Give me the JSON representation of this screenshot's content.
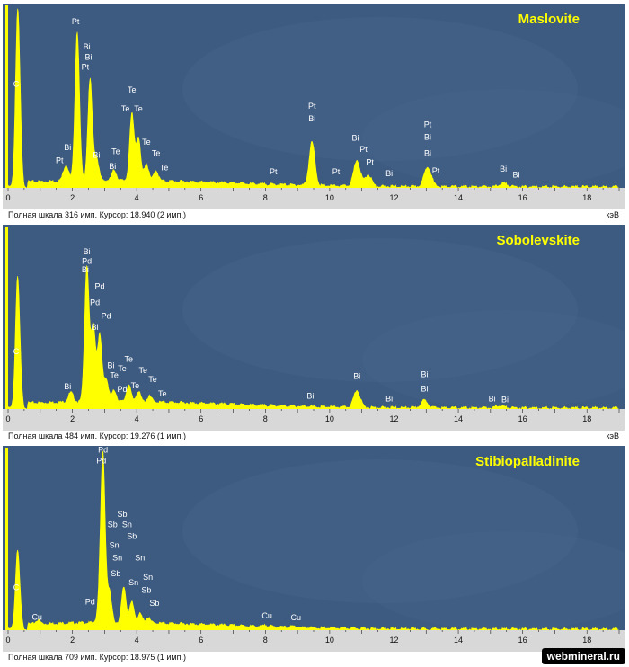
{
  "watermark": "webmineral.ru",
  "unit_label": "кэВ",
  "colors": {
    "spectrum": "#ffff00",
    "background": "#3d5a80",
    "text": "#ffffff",
    "title": "#ffff00"
  },
  "chart_data": [
    {
      "type": "area",
      "title": "Maslovite",
      "status": "Полная шкала 316 имп. Курсор: 18.940  (2 имп.)",
      "xlim": [
        0,
        19
      ],
      "ylim": [
        0,
        316
      ],
      "xticks": [
        0,
        2,
        4,
        6,
        8,
        10,
        12,
        14,
        16,
        18
      ],
      "peaks": [
        {
          "x": 0.28,
          "y": 230,
          "w": 0.06
        },
        {
          "x": 0.35,
          "y": 130,
          "w": 0.06
        },
        {
          "x": 1.8,
          "y": 28,
          "w": 0.08
        },
        {
          "x": 2.15,
          "y": 260,
          "w": 0.07
        },
        {
          "x": 2.55,
          "y": 175,
          "w": 0.07
        },
        {
          "x": 2.75,
          "y": 40,
          "w": 0.07
        },
        {
          "x": 3.3,
          "y": 18,
          "w": 0.07
        },
        {
          "x": 3.85,
          "y": 115,
          "w": 0.07
        },
        {
          "x": 4.05,
          "y": 75,
          "w": 0.07
        },
        {
          "x": 4.3,
          "y": 30,
          "w": 0.07
        },
        {
          "x": 4.6,
          "y": 18,
          "w": 0.07
        },
        {
          "x": 9.45,
          "y": 75,
          "w": 0.09
        },
        {
          "x": 10.85,
          "y": 45,
          "w": 0.1
        },
        {
          "x": 11.2,
          "y": 20,
          "w": 0.1
        },
        {
          "x": 13.05,
          "y": 35,
          "w": 0.11
        },
        {
          "x": 15.4,
          "y": 6,
          "w": 0.12
        }
      ],
      "labels": [
        {
          "text": "C",
          "x": 0.25,
          "y": 175
        },
        {
          "text": "Pt",
          "x": 2.1,
          "y": 283
        },
        {
          "text": "Bi",
          "x": 2.45,
          "y": 240
        },
        {
          "text": "Bi",
          "x": 2.5,
          "y": 222
        },
        {
          "text": "Pt",
          "x": 2.4,
          "y": 205
        },
        {
          "text": "Bi",
          "x": 1.85,
          "y": 65
        },
        {
          "text": "Pt",
          "x": 1.6,
          "y": 43
        },
        {
          "text": "Bi",
          "x": 2.75,
          "y": 52
        },
        {
          "text": "Te",
          "x": 3.85,
          "y": 165
        },
        {
          "text": "Te",
          "x": 3.65,
          "y": 132
        },
        {
          "text": "Te",
          "x": 4.05,
          "y": 132
        },
        {
          "text": "Te",
          "x": 4.3,
          "y": 75
        },
        {
          "text": "Te",
          "x": 4.6,
          "y": 55
        },
        {
          "text": "Te",
          "x": 4.85,
          "y": 30
        },
        {
          "text": "Te",
          "x": 3.35,
          "y": 58
        },
        {
          "text": "Bi",
          "x": 3.25,
          "y": 33
        },
        {
          "text": "Pt",
          "x": 8.25,
          "y": 23
        },
        {
          "text": "Pt",
          "x": 9.45,
          "y": 137
        },
        {
          "text": "Bi",
          "x": 9.45,
          "y": 115
        },
        {
          "text": "Pt",
          "x": 10.2,
          "y": 23
        },
        {
          "text": "Bi",
          "x": 10.8,
          "y": 82
        },
        {
          "text": "Pt",
          "x": 11.05,
          "y": 62
        },
        {
          "text": "Pt",
          "x": 11.25,
          "y": 40
        },
        {
          "text": "Bi",
          "x": 11.85,
          "y": 20
        },
        {
          "text": "Pt",
          "x": 13.05,
          "y": 105
        },
        {
          "text": "Bi",
          "x": 13.05,
          "y": 83
        },
        {
          "text": "Bi",
          "x": 13.05,
          "y": 55
        },
        {
          "text": "Pt",
          "x": 13.3,
          "y": 25
        },
        {
          "text": "Bi",
          "x": 15.4,
          "y": 28
        },
        {
          "text": "Bi",
          "x": 15.8,
          "y": 18
        }
      ]
    },
    {
      "type": "area",
      "title": "Sobolevskite",
      "status": "Полная шкала 484 имп. Курсор: 19.276  (1 имп.)",
      "xlim": [
        0,
        19
      ],
      "ylim": [
        0,
        484
      ],
      "xticks": [
        0,
        2,
        4,
        6,
        8,
        10,
        12,
        14,
        16,
        18
      ],
      "peaks": [
        {
          "x": 0.28,
          "y": 280,
          "w": 0.06
        },
        {
          "x": 0.35,
          "y": 120,
          "w": 0.06
        },
        {
          "x": 1.95,
          "y": 25,
          "w": 0.08
        },
        {
          "x": 2.45,
          "y": 360,
          "w": 0.07
        },
        {
          "x": 2.65,
          "y": 200,
          "w": 0.07
        },
        {
          "x": 2.85,
          "y": 175,
          "w": 0.07
        },
        {
          "x": 3.05,
          "y": 60,
          "w": 0.07
        },
        {
          "x": 3.3,
          "y": 30,
          "w": 0.07
        },
        {
          "x": 3.75,
          "y": 45,
          "w": 0.07
        },
        {
          "x": 4.05,
          "y": 28,
          "w": 0.07
        },
        {
          "x": 4.4,
          "y": 15,
          "w": 0.07
        },
        {
          "x": 10.85,
          "y": 45,
          "w": 0.1
        },
        {
          "x": 12.95,
          "y": 20,
          "w": 0.11
        },
        {
          "x": 15.3,
          "y": 6,
          "w": 0.12
        }
      ],
      "labels": [
        {
          "text": "C",
          "x": 0.25,
          "y": 145
        },
        {
          "text": "Bi",
          "x": 2.45,
          "y": 410
        },
        {
          "text": "Pd",
          "x": 2.45,
          "y": 385
        },
        {
          "text": "Bi",
          "x": 2.4,
          "y": 362
        },
        {
          "text": "Pd",
          "x": 2.85,
          "y": 318
        },
        {
          "text": "Pd",
          "x": 2.7,
          "y": 275
        },
        {
          "text": "Pd",
          "x": 3.05,
          "y": 240
        },
        {
          "text": "Bi",
          "x": 2.7,
          "y": 210
        },
        {
          "text": "Bi",
          "x": 1.85,
          "y": 52
        },
        {
          "text": "Te",
          "x": 3.75,
          "y": 125
        },
        {
          "text": "Te",
          "x": 3.55,
          "y": 100
        },
        {
          "text": "Bi",
          "x": 3.2,
          "y": 108
        },
        {
          "text": "Te",
          "x": 3.3,
          "y": 82
        },
        {
          "text": "Te",
          "x": 4.2,
          "y": 95
        },
        {
          "text": "Te",
          "x": 4.5,
          "y": 72
        },
        {
          "text": "Te",
          "x": 4.8,
          "y": 33
        },
        {
          "text": "Pd",
          "x": 3.55,
          "y": 45
        },
        {
          "text": "Te",
          "x": 3.95,
          "y": 55
        },
        {
          "text": "Bi",
          "x": 9.4,
          "y": 28
        },
        {
          "text": "Bi",
          "x": 10.85,
          "y": 80
        },
        {
          "text": "Bi",
          "x": 11.85,
          "y": 20
        },
        {
          "text": "Bi",
          "x": 12.95,
          "y": 85
        },
        {
          "text": "Bi",
          "x": 12.95,
          "y": 47
        },
        {
          "text": "Bi",
          "x": 15.05,
          "y": 20
        },
        {
          "text": "Bi",
          "x": 15.45,
          "y": 18
        }
      ]
    },
    {
      "type": "area",
      "title": "Stibiopalladinite",
      "status": "Полная шкала 709 имп. Курсор: 18.975  (1 имп.)",
      "xlim": [
        0,
        19
      ],
      "ylim": [
        0,
        709
      ],
      "xticks": [
        0,
        2,
        4,
        6,
        8,
        10,
        12,
        14,
        16,
        18
      ],
      "peaks": [
        {
          "x": 0.28,
          "y": 250,
          "w": 0.06
        },
        {
          "x": 0.35,
          "y": 100,
          "w": 0.06
        },
        {
          "x": 0.93,
          "y": 15,
          "w": 0.07
        },
        {
          "x": 2.85,
          "y": 70,
          "w": 0.07
        },
        {
          "x": 2.95,
          "y": 640,
          "w": 0.07
        },
        {
          "x": 3.15,
          "y": 120,
          "w": 0.07
        },
        {
          "x": 3.6,
          "y": 140,
          "w": 0.07
        },
        {
          "x": 3.85,
          "y": 80,
          "w": 0.07
        },
        {
          "x": 4.1,
          "y": 35,
          "w": 0.07
        },
        {
          "x": 4.35,
          "y": 20,
          "w": 0.07
        },
        {
          "x": 8.05,
          "y": 5,
          "w": 0.09
        },
        {
          "x": 8.9,
          "y": 4,
          "w": 0.09
        }
      ],
      "labels": [
        {
          "text": "C",
          "x": 0.25,
          "y": 155
        },
        {
          "text": "Cu",
          "x": 0.9,
          "y": 40
        },
        {
          "text": "Pd",
          "x": 2.95,
          "y": 690
        },
        {
          "text": "Pd",
          "x": 2.9,
          "y": 648
        },
        {
          "text": "Sb",
          "x": 3.55,
          "y": 440
        },
        {
          "text": "Sn",
          "x": 3.7,
          "y": 400
        },
        {
          "text": "Sb",
          "x": 3.25,
          "y": 400
        },
        {
          "text": "Sb",
          "x": 3.85,
          "y": 355
        },
        {
          "text": "Sn",
          "x": 3.3,
          "y": 320
        },
        {
          "text": "Sn",
          "x": 3.4,
          "y": 270
        },
        {
          "text": "Sn",
          "x": 4.1,
          "y": 270
        },
        {
          "text": "Sn",
          "x": 4.35,
          "y": 195
        },
        {
          "text": "Sb",
          "x": 3.35,
          "y": 210
        },
        {
          "text": "Sn",
          "x": 3.9,
          "y": 175
        },
        {
          "text": "Sb",
          "x": 4.3,
          "y": 145
        },
        {
          "text": "Sb",
          "x": 4.55,
          "y": 95
        },
        {
          "text": "Pd",
          "x": 2.55,
          "y": 100
        },
        {
          "text": "Cu",
          "x": 8.05,
          "y": 45
        },
        {
          "text": "Cu",
          "x": 8.95,
          "y": 38
        }
      ]
    }
  ]
}
